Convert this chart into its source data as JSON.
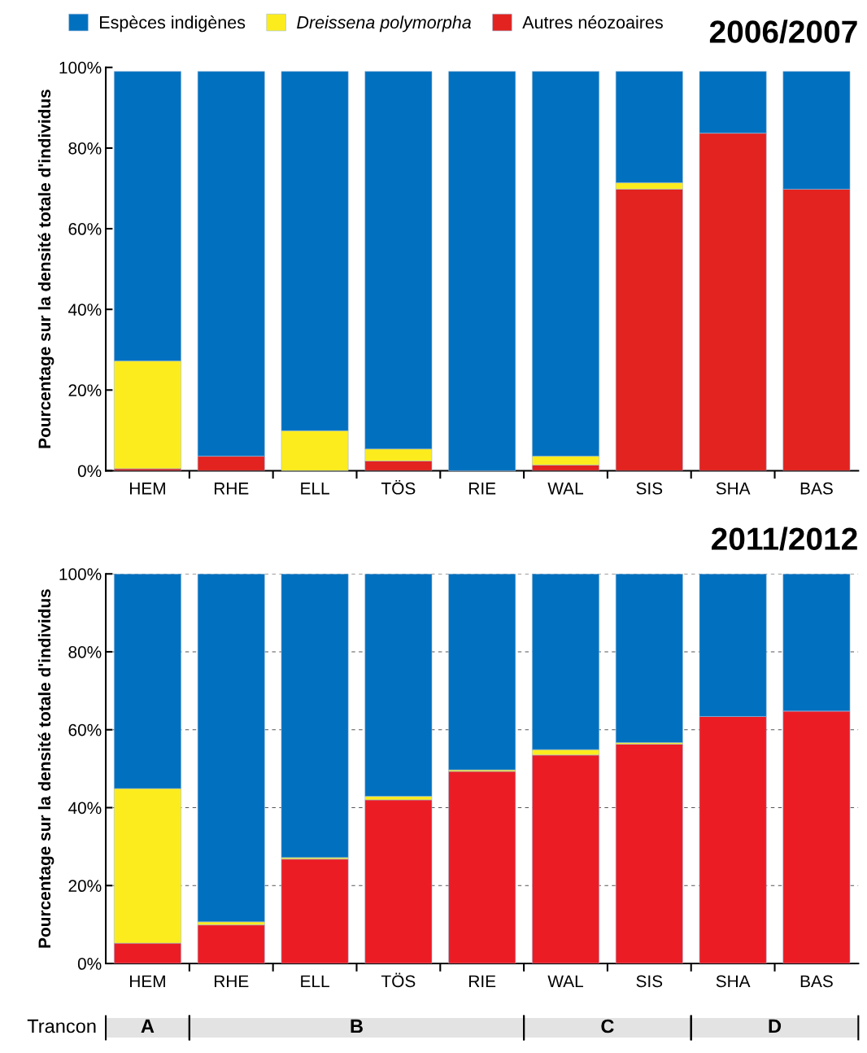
{
  "chart_data": [
    {
      "type": "bar",
      "stacked": true,
      "title": "2006/2007",
      "ylabel": "Pourcentage sur la densité totale d'individus",
      "categories": [
        "HEM",
        "RHE",
        "ELL",
        "TÖS",
        "RIE",
        "WAL",
        "SIS",
        "SHA",
        "BAS"
      ],
      "series": [
        {
          "name": "Autres néozoaires",
          "color": "#e2231f",
          "values": [
            0.5,
            3.6,
            0,
            2.4,
            0,
            1.4,
            69.8,
            83.7,
            69.8
          ]
        },
        {
          "name": "Dreissena polymorpha",
          "color": "#fcec1e",
          "values": [
            26.7,
            0,
            9.9,
            3,
            0,
            2.2,
            1.6,
            0,
            0
          ]
        },
        {
          "name": "Espèces indigènes",
          "color": "#0070bf",
          "values": [
            71.8,
            95.4,
            89.1,
            93.6,
            99,
            95.4,
            27.6,
            15.3,
            29.2
          ]
        }
      ],
      "ylim": [
        0,
        100
      ],
      "yticks": [
        {
          "value": 0,
          "label": "0%"
        },
        {
          "value": 20,
          "label": "20%"
        },
        {
          "value": 40,
          "label": "40%"
        },
        {
          "value": 60,
          "label": "60%"
        },
        {
          "value": 80,
          "label": "80%"
        },
        {
          "value": 100,
          "label": "100%"
        }
      ],
      "grid": false,
      "legend": "top"
    },
    {
      "type": "bar",
      "stacked": true,
      "title": "2011/2012",
      "ylabel": "Pourcentage sur la densité totale d'individus",
      "categories": [
        "HEM",
        "RHE",
        "ELL",
        "TÖS",
        "RIE",
        "WAL",
        "SIS",
        "SHA",
        "BAS"
      ],
      "series": [
        {
          "color": "#ec1c24",
          "values": [
            5.2,
            9.9,
            26.8,
            42,
            49.3,
            53.5,
            56.3,
            63.4,
            64.8
          ]
        },
        {
          "color": "#fcec1e",
          "values": [
            39.7,
            0.8,
            0.4,
            0.9,
            0.4,
            1.4,
            0.4,
            0,
            0
          ]
        },
        {
          "color": "#0070bf",
          "values": [
            55.1,
            89.3,
            72.8,
            57.1,
            50.3,
            45.1,
            43.3,
            36.6,
            35.2
          ]
        }
      ],
      "ylim": [
        0,
        100
      ],
      "yticks": [
        {
          "value": 0,
          "label": "0%"
        },
        {
          "value": 20,
          "label": "20%"
        },
        {
          "value": 40,
          "label": "40%"
        },
        {
          "value": 60,
          "label": "60%"
        },
        {
          "value": 80,
          "label": "80%"
        },
        {
          "value": 100,
          "label": "100%"
        }
      ],
      "grid": "y",
      "legend": false,
      "annotations": [
        "Trancon",
        "A",
        "B",
        "C",
        "D"
      ]
    }
  ]
}
